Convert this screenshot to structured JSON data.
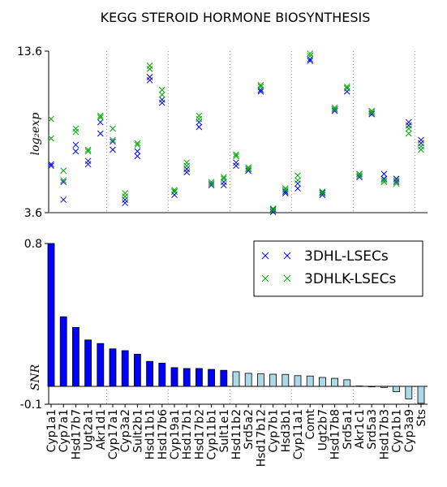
{
  "chart_data": [
    {
      "type": "scatter",
      "title": "KEGG STEROID HORMONE BIOSYNTHESIS",
      "ylabel": "log₂exp",
      "ylim": [
        3.6,
        13.6
      ],
      "yticks": [
        3.6,
        13.6
      ],
      "legend": "upper right",
      "series": [
        {
          "name": "3DHL-LSECs",
          "color": "#0000ff",
          "values": [
            [
              6.6,
              6.5
            ],
            [
              5.5,
              4.4
            ],
            [
              7.8,
              7.4
            ],
            [
              6.8,
              6.6
            ],
            [
              9.2,
              8.5
            ],
            [
              8.0,
              7.5
            ],
            [
              4.4,
              4.2
            ],
            [
              7.4,
              7.1
            ],
            [
              12.0,
              11.8
            ],
            [
              10.6,
              10.4
            ],
            [
              4.9,
              4.7
            ],
            [
              6.3,
              6.1
            ],
            [
              9.2,
              8.9
            ],
            [
              5.4,
              5.3
            ],
            [
              5.5,
              5.3
            ],
            [
              6.7,
              6.5
            ],
            [
              6.3,
              6.2
            ],
            [
              11.2,
              11.1
            ],
            [
              3.8,
              3.65
            ],
            [
              4.9,
              4.8
            ],
            [
              5.4,
              5.1
            ],
            [
              13.1,
              13.0
            ],
            [
              4.85,
              4.7
            ],
            [
              10.0,
              9.9
            ],
            [
              11.3,
              11.1
            ],
            [
              6.0,
              5.8
            ],
            [
              9.8,
              9.7
            ],
            [
              6.0,
              5.7
            ],
            [
              5.7,
              5.5
            ],
            [
              9.2,
              9.0
            ],
            [
              8.1,
              7.9
            ]
          ]
        },
        {
          "name": "3DHLK-LSECs",
          "color": "#00aa00",
          "values": [
            [
              9.4,
              8.2
            ],
            [
              6.2,
              5.6
            ],
            [
              8.8,
              8.6
            ],
            [
              7.5,
              7.4
            ],
            [
              9.6,
              9.5
            ],
            [
              8.8,
              8.1
            ],
            [
              4.8,
              4.6
            ],
            [
              7.9,
              7.8
            ],
            [
              12.7,
              12.5
            ],
            [
              11.2,
              10.9
            ],
            [
              5.0,
              4.9
            ],
            [
              6.7,
              6.5
            ],
            [
              9.6,
              9.4
            ],
            [
              5.5,
              5.4
            ],
            [
              5.8,
              5.7
            ],
            [
              7.2,
              7.1
            ],
            [
              6.4,
              6.3
            ],
            [
              11.5,
              11.4
            ],
            [
              3.85,
              3.75
            ],
            [
              5.1,
              5.0
            ],
            [
              5.9,
              5.6
            ],
            [
              13.45,
              13.3
            ],
            [
              4.9,
              4.8
            ],
            [
              10.1,
              10.0
            ],
            [
              11.4,
              11.3
            ],
            [
              6.0,
              5.9
            ],
            [
              9.9,
              9.8
            ],
            [
              5.6,
              5.5
            ],
            [
              5.6,
              5.4
            ],
            [
              8.8,
              8.5
            ],
            [
              7.7,
              7.5
            ]
          ]
        }
      ]
    },
    {
      "type": "bar",
      "ylabel": "SNR",
      "ylim": [
        -0.1,
        0.8
      ],
      "yticks": [
        -0.1,
        0.8
      ],
      "categories": [
        "Cyp1a1",
        "Cyp7a1",
        "Hsd17b7",
        "Ugt2a1",
        "Akr1d1",
        "Cyp17a1",
        "Cyp3a2",
        "Sult2b1",
        "Hsd11b1",
        "Hsd17b6",
        "Cyp19a1",
        "Hsd17b1",
        "Hsd17b2",
        "Cyp11b1",
        "Sult1e1",
        "Hsd11b2",
        "Srd5a2",
        "Hsd17b12",
        "Cyp7b1",
        "Hsd3b1",
        "Cyp11a1",
        "Comt",
        "Ugt2b7",
        "Hsd17b8",
        "Srd5a1",
        "Akr1c1",
        "Srd5a3",
        "Hsd17b3",
        "Cyp1b1",
        "Cyp3a9",
        "Sts"
      ],
      "values": [
        0.8,
        0.39,
        0.33,
        0.26,
        0.24,
        0.21,
        0.2,
        0.18,
        0.14,
        0.13,
        0.105,
        0.1,
        0.1,
        0.095,
        0.09,
        0.082,
        0.073,
        0.07,
        0.068,
        0.067,
        0.06,
        0.058,
        0.05,
        0.045,
        0.037,
        0.002,
        -0.003,
        -0.006,
        -0.03,
        -0.07,
        -0.095
      ],
      "colors": [
        "#0000ff",
        "#0000ff",
        "#0000ff",
        "#0000ff",
        "#0000ff",
        "#0000ff",
        "#0000ff",
        "#0000ff",
        "#0000ff",
        "#0000ff",
        "#0000ff",
        "#0000ff",
        "#0000ff",
        "#0000ff",
        "#0000ff",
        "#add8e6",
        "#add8e6",
        "#add8e6",
        "#add8e6",
        "#add8e6",
        "#add8e6",
        "#add8e6",
        "#add8e6",
        "#add8e6",
        "#add8e6",
        "#add8e6",
        "#add8e6",
        "#add8e6",
        "#add8e6",
        "#add8e6",
        "#add8e6"
      ]
    }
  ]
}
